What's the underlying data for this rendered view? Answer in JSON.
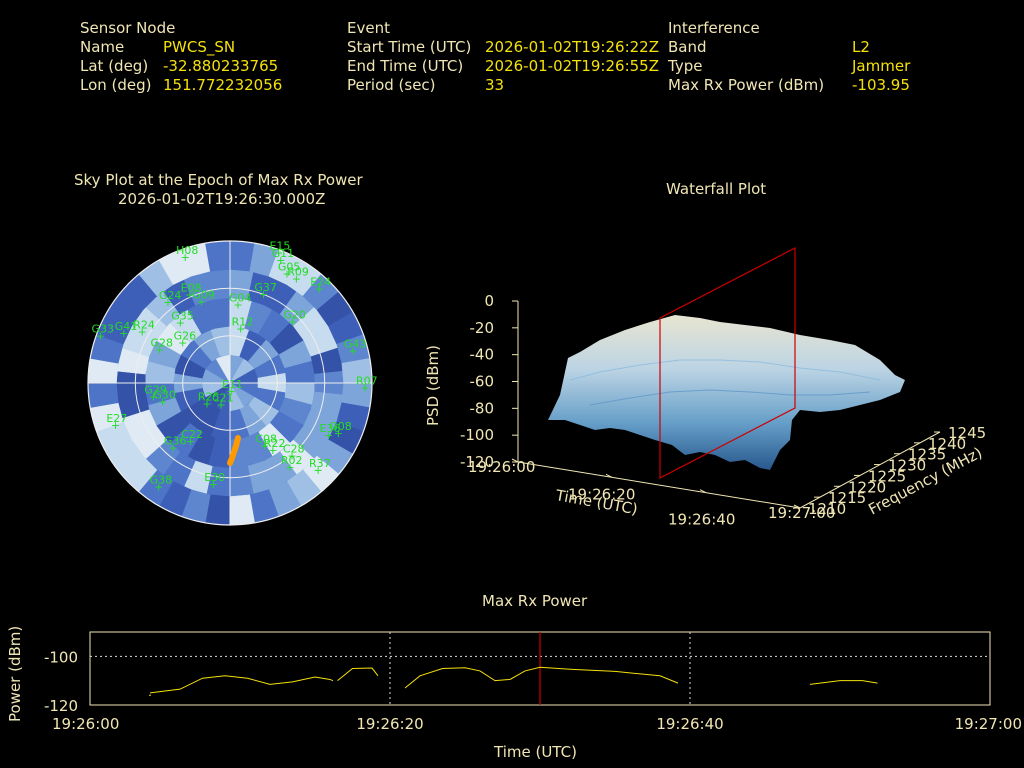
{
  "colors": {
    "label": "#f0e6b4",
    "value": "#f5e10a",
    "satellite": "#22dd22",
    "trace": "#f5e10a",
    "marker": "#cc0000",
    "track": "#ff9900"
  },
  "info": {
    "sensor": {
      "header": "Sensor Node",
      "rows": [
        {
          "label": "Name",
          "value": "PWCS_SN"
        },
        {
          "label": "Lat (deg)",
          "value": "-32.880233765"
        },
        {
          "label": "Lon (deg)",
          "value": "151.772232056"
        }
      ]
    },
    "event": {
      "header": "Event",
      "rows": [
        {
          "label": "Start Time (UTC)",
          "value": "2026-01-02T19:26:22Z"
        },
        {
          "label": "End Time (UTC)",
          "value": "2026-01-02T19:26:55Z"
        },
        {
          "label": "Period (sec)",
          "value": "33"
        }
      ]
    },
    "interference": {
      "header": "Interference",
      "rows": [
        {
          "label": "Band",
          "value": "L2"
        },
        {
          "label": "Type",
          "value": "Jammer"
        },
        {
          "label": "Max Rx Power (dBm)",
          "value": "-103.95"
        }
      ]
    }
  },
  "chart_data": [
    {
      "type": "scatter",
      "title": "Sky Plot at the Epoch of Max Rx Power",
      "subtitle": "2026-01-02T19:26:30.000Z",
      "satellites": [
        {
          "id": "H08",
          "az": 340,
          "el": 5
        },
        {
          "id": "E15",
          "az": 20,
          "el": 2
        },
        {
          "id": "G11",
          "az": 22,
          "el": 6
        },
        {
          "id": "G05",
          "az": 27,
          "el": 12
        },
        {
          "id": "R09",
          "az": 32,
          "el": 12
        },
        {
          "id": "E24",
          "az": 43,
          "el": 8
        },
        {
          "id": "G24",
          "az": 322,
          "el": 25
        },
        {
          "id": "E08",
          "az": 335,
          "el": 28
        },
        {
          "id": "G37",
          "az": 20,
          "el": 30
        },
        {
          "id": "G09",
          "az": 340,
          "el": 35
        },
        {
          "id": "G04",
          "az": 5,
          "el": 40
        },
        {
          "id": "R24",
          "az": 300,
          "el": 25
        },
        {
          "id": "G41",
          "az": 295,
          "el": 15
        },
        {
          "id": "G35",
          "az": 320,
          "el": 40
        },
        {
          "id": "R12",
          "az": 10,
          "el": 55
        },
        {
          "id": "G20",
          "az": 45,
          "el": 35
        },
        {
          "id": "G43",
          "az": 75,
          "el": 10
        },
        {
          "id": "G28",
          "az": 295,
          "el": 40
        },
        {
          "id": "G33",
          "az": 290,
          "el": 2
        },
        {
          "id": "G26",
          "az": 310,
          "el": 50
        },
        {
          "id": "R07",
          "az": 92,
          "el": 5
        },
        {
          "id": "G29",
          "az": 260,
          "el": 40
        },
        {
          "id": "G30",
          "az": 255,
          "el": 45
        },
        {
          "id": "E27",
          "az": 250,
          "el": 12
        },
        {
          "id": "R25",
          "az": 230,
          "el": 70
        },
        {
          "id": "E11",
          "az": 180,
          "el": 85
        },
        {
          "id": "C21",
          "az": 205,
          "el": 75
        },
        {
          "id": "G08",
          "az": 115,
          "el": 15
        },
        {
          "id": "E36",
          "az": 118,
          "el": 20
        },
        {
          "id": "C28",
          "az": 140,
          "el": 30
        },
        {
          "id": "R22",
          "az": 148,
          "el": 40
        },
        {
          "id": "C08",
          "az": 152,
          "el": 45
        },
        {
          "id": "R02",
          "az": 145,
          "el": 25
        },
        {
          "id": "R37",
          "az": 135,
          "el": 12
        },
        {
          "id": "G36",
          "az": 222,
          "el": 35
        },
        {
          "id": "C22",
          "az": 215,
          "el": 45
        },
        {
          "id": "E30",
          "az": 190,
          "el": 25
        },
        {
          "id": "G38",
          "az": 215,
          "el": 10
        }
      ]
    },
    {
      "type": "heatmap",
      "title": "Waterfall Plot",
      "xlabel": "Time (UTC)",
      "ylabel": "Frequency (MHz)",
      "zlabel": "PSD (dBm)",
      "x_ticks": [
        "19:26:00",
        "19:26:20",
        "19:26:40",
        "19:27:00"
      ],
      "y_ticks": [
        1210,
        1215,
        1220,
        1225,
        1230,
        1235,
        1240,
        1245
      ],
      "z_ticks": [
        0,
        -20,
        -40,
        -60,
        -80,
        -100,
        -120
      ],
      "zlim": [
        -120,
        0
      ],
      "marker_time": "19:26:30"
    },
    {
      "type": "line",
      "title": "Max Rx Power",
      "xlabel": "Time (UTC)",
      "ylabel": "Power (dBm)",
      "x_ticks": [
        "19:26:00",
        "19:26:20",
        "19:26:40",
        "19:27:00"
      ],
      "xlim": [
        0,
        60
      ],
      "ylim": [
        -120,
        -90
      ],
      "y_ticks": [
        -100,
        -120
      ],
      "marker_time": 30,
      "series": [
        {
          "name": "",
          "values": [
            [
              4,
              -115
            ],
            [
              6,
              -114
            ],
            [
              7.5,
              -109
            ],
            [
              9,
              -108
            ],
            [
              10.5,
              -109
            ],
            [
              12,
              -112
            ],
            [
              13.5,
              -111
            ],
            [
              15,
              -109
            ],
            [
              16,
              -109
            ],
            [
              17.5,
              -110
            ]
          ]
        },
        {
          "name": "",
          "values": [
            [
              16,
              -111
            ],
            [
              16.8,
              -109
            ]
          ]
        },
        {
          "name": "",
          "values": [
            [
              16,
              -112
            ],
            [
              17,
              -111.5
            ],
            [
              18,
              -112
            ]
          ]
        }
      ]
    }
  ]
}
